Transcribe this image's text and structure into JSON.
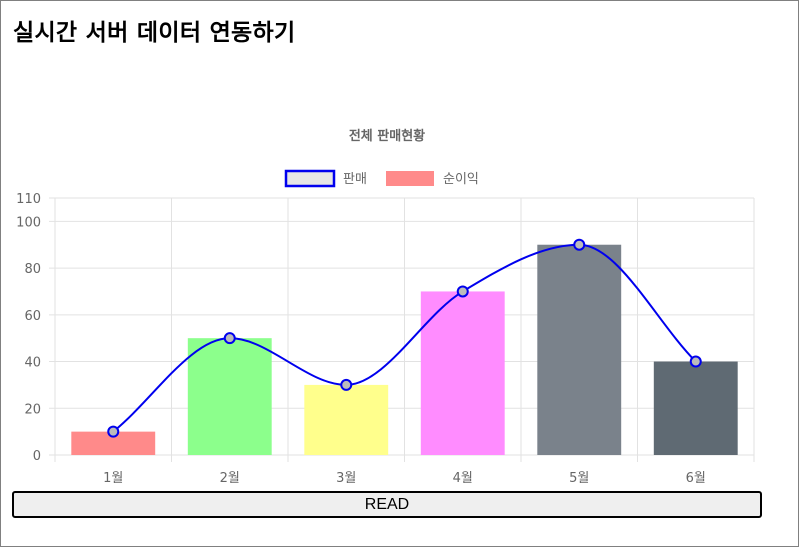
{
  "page": {
    "title": "실시간 서버 데이터 연동하기"
  },
  "button": {
    "read_label": "READ"
  },
  "colors": {
    "line": "#0000ee",
    "line_point_fill": "#bbbbbb",
    "grid": "#e2e2e2",
    "axis_text": "#666666",
    "bars": [
      "#ff8a8a",
      "#8cff8c",
      "#ffff8c",
      "#ff8cff",
      "#7a828b",
      "#5f6a73"
    ]
  },
  "chart_data": {
    "type": "bar",
    "title": "전체 판매현황",
    "categories": [
      "1월",
      "2월",
      "3월",
      "4월",
      "5월",
      "6월"
    ],
    "series": [
      {
        "name": "판매",
        "type": "line",
        "values": [
          10,
          50,
          30,
          70,
          90,
          40
        ]
      },
      {
        "name": "순이익",
        "type": "bar",
        "values": [
          10,
          50,
          30,
          70,
          90,
          40
        ]
      }
    ],
    "xlabel": "",
    "ylabel": "",
    "ylim": [
      0,
      110
    ],
    "yticks": [
      0,
      20,
      40,
      60,
      80,
      100,
      110
    ],
    "grid": true,
    "legend_position": "top"
  }
}
